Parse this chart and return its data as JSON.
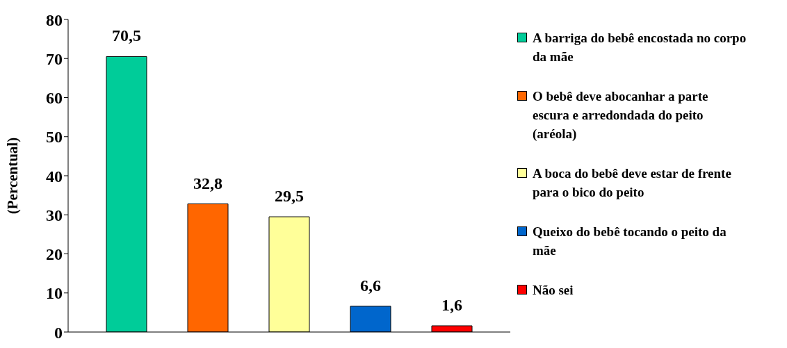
{
  "chart_data": {
    "type": "bar",
    "categories": [
      null
    ],
    "ylabel": "(Percentual)",
    "ylim": [
      0,
      80
    ],
    "yticks": [
      0,
      10,
      20,
      30,
      40,
      50,
      60,
      70,
      80
    ],
    "grid": false,
    "legend": "right",
    "series": [
      {
        "name": "A barriga do bebê encostada no corpo da mãe",
        "color": "#00cc99",
        "values": [
          70.5
        ],
        "value_labels": [
          "70,5"
        ]
      },
      {
        "name": "O bebê deve abocanhar a parte escura e arredondada do peito (aréola)",
        "color": "#ff6600",
        "values": [
          32.8
        ],
        "value_labels": [
          "32,8"
        ]
      },
      {
        "name": "A boca do bebê deve estar de frente para o bico do peito",
        "color": "#ffff99",
        "values": [
          29.5
        ],
        "value_labels": [
          "29,5"
        ]
      },
      {
        "name": "Queixo do bebê tocando o peito da mãe",
        "color": "#0066cc",
        "values": [
          6.6
        ],
        "value_labels": [
          "6,6"
        ]
      },
      {
        "name": "Não sei",
        "color": "#ff0000",
        "values": [
          1.6
        ],
        "value_labels": [
          "1,6"
        ]
      }
    ]
  }
}
